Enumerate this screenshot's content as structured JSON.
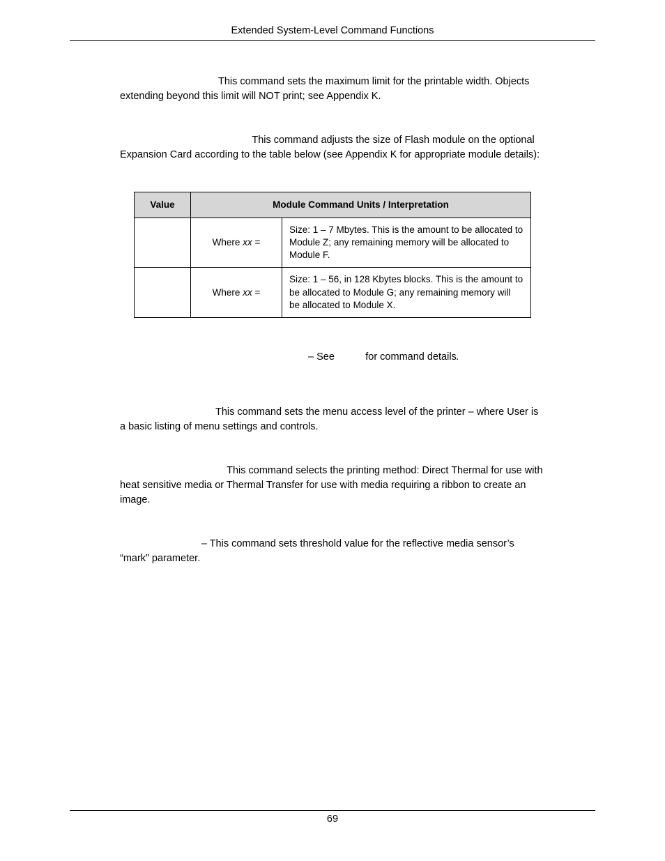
{
  "header": {
    "title": "Extended System-Level Command Functions"
  },
  "paragraphs": {
    "p1_lead_pad": "                                   ",
    "p1_rest": "This command sets the maximum limit for the printable width. Objects extending beyond this limit will NOT print; see Appendix K.",
    "p2_lead_pad": "                                               ",
    "p2_rest": "This command adjusts the size of Flash module on the optional Expansion Card according to the table below (see Appendix K for appropriate module details):",
    "p3_lead_pad": "                                  ",
    "p3_rest": "This command sets the menu access level of the printer – where User is a basic listing of menu settings and controls.",
    "p4_lead_pad": "                                      ",
    "p4_rest": "This command selects the printing method: Direct Thermal for use with heat sensitive media or Thermal Transfer for use with media requiring a ribbon to create an image.",
    "p5_lead_pad": "                             ",
    "p5_rest": "– This command sets threshold value for the reflective media sensor’s “mark” parameter."
  },
  "table": {
    "col_value": "Value",
    "col_interp": "Module Command Units / Interpretation",
    "rows": [
      {
        "where_prefix": "Where ",
        "where_xx": "xx",
        "where_suffix": " =",
        "desc": "Size: 1 – 7 Mbytes. This is the amount to be allocated to Module Z; any remaining memory will be allocated to Module F."
      },
      {
        "where_prefix": "Where ",
        "where_xx": "xx",
        "where_suffix": " =",
        "desc": "Size: 1 – 56, in 128 Kbytes blocks. This is the amount to be allocated to Module G; any remaining memory will be allocated to Module X."
      }
    ]
  },
  "see_line": {
    "dash_see": "– See",
    "gap": "           ",
    "tail": "for command details",
    "period": "."
  },
  "footer": {
    "page_number": "69"
  }
}
